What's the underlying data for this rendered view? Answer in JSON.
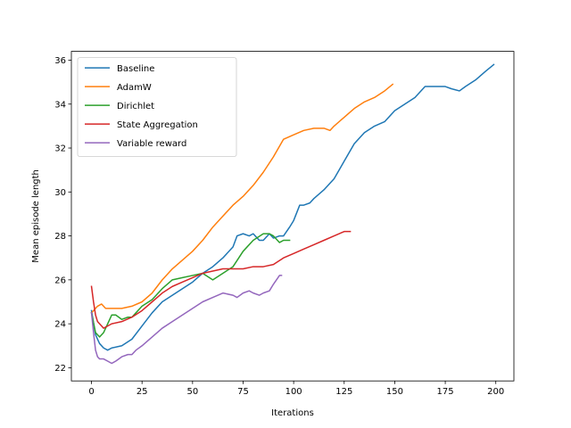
{
  "chart_data": {
    "type": "line",
    "title": "",
    "xlabel": "Iterations",
    "ylabel": "Mean episode length",
    "xlim": [
      -9.95,
      208.95
    ],
    "ylim": [
      21.4,
      36.4
    ],
    "xticks": [
      0,
      25,
      50,
      75,
      100,
      125,
      150,
      175,
      200
    ],
    "yticks": [
      22,
      24,
      26,
      28,
      30,
      32,
      34,
      36
    ],
    "grid": false,
    "legend_position": "top-left",
    "series": [
      {
        "name": "Baseline",
        "color": "#1f77b4",
        "x": [
          0,
          2,
          4,
          6,
          8,
          10,
          15,
          20,
          25,
          30,
          35,
          40,
          45,
          50,
          55,
          60,
          65,
          70,
          72,
          75,
          78,
          80,
          83,
          85,
          88,
          90,
          93,
          95,
          98,
          100,
          103,
          105,
          108,
          110,
          115,
          120,
          125,
          130,
          135,
          140,
          145,
          150,
          155,
          160,
          165,
          170,
          175,
          178,
          182,
          185,
          190,
          195,
          199
        ],
        "y": [
          24.6,
          23.5,
          23.1,
          22.9,
          22.8,
          22.9,
          23.0,
          23.3,
          23.9,
          24.5,
          25.0,
          25.3,
          25.6,
          25.9,
          26.3,
          26.6,
          27.0,
          27.5,
          28.0,
          28.1,
          28.0,
          28.1,
          27.8,
          27.8,
          28.1,
          27.9,
          28.0,
          28.0,
          28.4,
          28.7,
          29.4,
          29.4,
          29.5,
          29.7,
          30.1,
          30.6,
          31.4,
          32.2,
          32.7,
          33.0,
          33.2,
          33.7,
          34.0,
          34.3,
          34.8,
          34.8,
          34.8,
          34.7,
          34.6,
          34.8,
          35.1,
          35.5,
          35.8
        ]
      },
      {
        "name": "AdamW",
        "color": "#ff7f0e",
        "x": [
          0,
          3,
          5,
          7,
          10,
          15,
          20,
          25,
          30,
          35,
          40,
          45,
          50,
          55,
          60,
          65,
          70,
          75,
          80,
          85,
          90,
          95,
          100,
          105,
          110,
          115,
          118,
          120,
          125,
          130,
          135,
          140,
          145,
          149
        ],
        "y": [
          24.5,
          24.8,
          24.9,
          24.7,
          24.7,
          24.7,
          24.8,
          25.0,
          25.4,
          26.0,
          26.5,
          26.9,
          27.3,
          27.8,
          28.4,
          28.9,
          29.4,
          29.8,
          30.3,
          30.9,
          31.6,
          32.4,
          32.6,
          32.8,
          32.9,
          32.9,
          32.8,
          33.0,
          33.4,
          33.8,
          34.1,
          34.3,
          34.6,
          34.9
        ]
      },
      {
        "name": "Dirichlet",
        "color": "#2ca02c",
        "x": [
          0,
          2,
          4,
          6,
          8,
          10,
          12,
          15,
          18,
          20,
          22,
          25,
          30,
          35,
          40,
          45,
          50,
          55,
          60,
          65,
          70,
          75,
          80,
          85,
          88,
          90,
          93,
          95,
          98
        ],
        "y": [
          24.5,
          23.6,
          23.4,
          23.6,
          24.0,
          24.4,
          24.4,
          24.2,
          24.3,
          24.3,
          24.5,
          24.8,
          25.1,
          25.6,
          26.0,
          26.1,
          26.2,
          26.3,
          26.0,
          26.3,
          26.6,
          27.3,
          27.8,
          28.1,
          28.1,
          28.0,
          27.7,
          27.8,
          27.8
        ]
      },
      {
        "name": "State Aggregation",
        "color": "#d62728",
        "x": [
          0,
          1,
          2,
          3,
          4,
          5,
          6,
          8,
          10,
          15,
          20,
          25,
          30,
          35,
          40,
          45,
          50,
          55,
          60,
          65,
          70,
          75,
          80,
          85,
          90,
          95,
          100,
          105,
          110,
          115,
          120,
          125,
          128
        ],
        "y": [
          25.7,
          25.0,
          24.4,
          24.1,
          24.0,
          23.9,
          23.8,
          23.9,
          24.0,
          24.1,
          24.3,
          24.6,
          25.0,
          25.4,
          25.7,
          25.9,
          26.1,
          26.3,
          26.4,
          26.5,
          26.5,
          26.5,
          26.6,
          26.6,
          26.7,
          27.0,
          27.2,
          27.4,
          27.6,
          27.8,
          28.0,
          28.2,
          28.2
        ]
      },
      {
        "name": "Variable reward",
        "color": "#9467bd",
        "x": [
          0,
          1,
          2,
          3,
          4,
          6,
          8,
          10,
          12,
          15,
          18,
          20,
          22,
          25,
          30,
          35,
          40,
          45,
          50,
          55,
          60,
          65,
          70,
          72,
          75,
          78,
          80,
          83,
          85,
          88,
          90,
          93,
          94
        ],
        "y": [
          24.5,
          23.6,
          22.8,
          22.5,
          22.4,
          22.4,
          22.3,
          22.2,
          22.3,
          22.5,
          22.6,
          22.6,
          22.8,
          23.0,
          23.4,
          23.8,
          24.1,
          24.4,
          24.7,
          25.0,
          25.2,
          25.4,
          25.3,
          25.2,
          25.4,
          25.5,
          25.4,
          25.3,
          25.4,
          25.5,
          25.8,
          26.2,
          26.2
        ]
      }
    ]
  }
}
